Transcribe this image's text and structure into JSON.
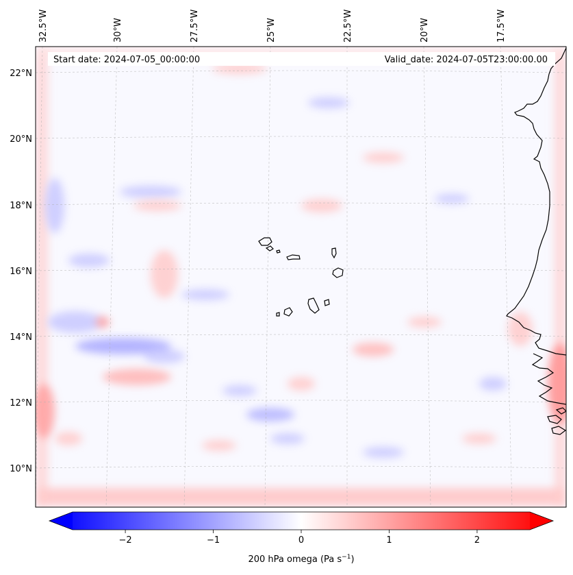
{
  "header": {
    "start_label": "Start date: 2024-07-05_00:00:00",
    "valid_label": "Valid_date: 2024-07-05T23:00:00.00"
  },
  "map": {
    "lon_labels": [
      "32.5°W",
      "30°W",
      "27.5°W",
      "25°W",
      "22.5°W",
      "20°W",
      "17.5°W"
    ],
    "lat_labels": [
      "22°N",
      "20°N",
      "18°N",
      "16°N",
      "14°N",
      "12°N",
      "10°N"
    ],
    "features": [
      "Cape Verde islands",
      "West African coastline"
    ]
  },
  "colorbar": {
    "label": "200 hPa omega (Pa s",
    "unit_superscript": "−1",
    "label_suffix": ")",
    "ticks": [
      "−2",
      "−1",
      "0",
      "1",
      "2"
    ],
    "tick_values": [
      -2,
      -1,
      0,
      1,
      2
    ],
    "range": [
      -2.6,
      2.6
    ],
    "cmap": "bwr",
    "colors": {
      "negative": "#0000ff",
      "zero": "#ffffff",
      "positive": "#ff0000"
    }
  }
}
